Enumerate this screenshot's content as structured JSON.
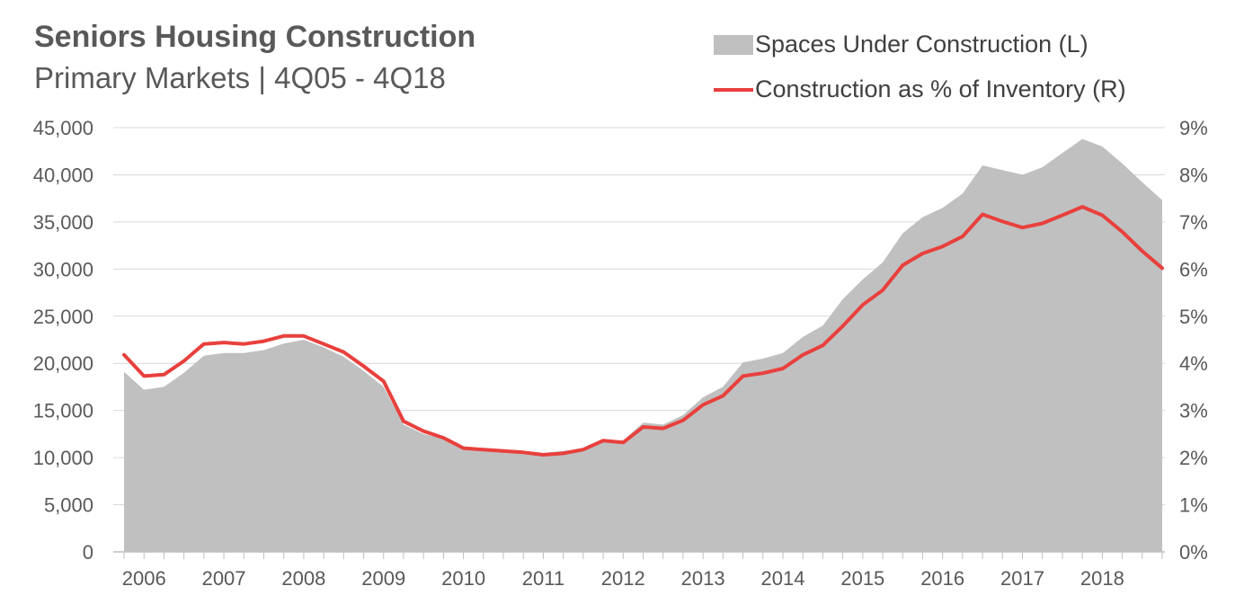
{
  "title": "Seniors Housing Construction",
  "subtitle": "Primary Markets | 4Q05 - 4Q18",
  "colors": {
    "area": "#c0c0c0",
    "line": "#e8403d",
    "grid": "#d9d9d9",
    "text": "#595959"
  },
  "chart_data": {
    "type": "area",
    "title": "Seniors Housing Construction",
    "subtitle": "Primary Markets | 4Q05 - 4Q18",
    "x": [
      "4Q05",
      "1Q06",
      "2Q06",
      "3Q06",
      "4Q06",
      "1Q07",
      "2Q07",
      "3Q07",
      "4Q07",
      "1Q08",
      "2Q08",
      "3Q08",
      "4Q08",
      "1Q09",
      "2Q09",
      "3Q09",
      "4Q09",
      "1Q10",
      "2Q10",
      "3Q10",
      "4Q10",
      "1Q11",
      "2Q11",
      "3Q11",
      "4Q11",
      "1Q12",
      "2Q12",
      "3Q12",
      "4Q12",
      "1Q13",
      "2Q13",
      "3Q13",
      "4Q13",
      "1Q14",
      "2Q14",
      "3Q14",
      "4Q14",
      "1Q15",
      "2Q15",
      "3Q15",
      "4Q15",
      "1Q16",
      "2Q16",
      "3Q16",
      "4Q16",
      "1Q17",
      "2Q17",
      "3Q17",
      "4Q17",
      "1Q18",
      "2Q18",
      "3Q18",
      "4Q18"
    ],
    "x_tick_labels": [
      "2006",
      "2007",
      "2008",
      "2009",
      "2010",
      "2011",
      "2012",
      "2013",
      "2014",
      "2015",
      "2016",
      "2017",
      "2018"
    ],
    "series": [
      {
        "name": "Spaces Under Construction (L)",
        "axis": "left",
        "type": "area",
        "values": [
          19100,
          17200,
          17500,
          19000,
          20800,
          21100,
          21100,
          21400,
          22100,
          22500,
          21700,
          20700,
          19200,
          17500,
          13500,
          12500,
          12000,
          11200,
          11000,
          10900,
          10700,
          10500,
          10700,
          11000,
          11900,
          11800,
          13700,
          13500,
          14500,
          16400,
          17500,
          20100,
          20500,
          21100,
          22800,
          24000,
          26800,
          28900,
          30700,
          33800,
          35500,
          36500,
          38000,
          41000,
          40500,
          40000,
          40800,
          42300,
          43800,
          43000,
          41200,
          39200,
          37300
        ]
      },
      {
        "name": "Construction as % of Inventory (R)",
        "axis": "right",
        "type": "line",
        "values": [
          4.18,
          3.73,
          3.76,
          4.05,
          4.41,
          4.44,
          4.41,
          4.47,
          4.58,
          4.58,
          4.41,
          4.24,
          3.94,
          3.62,
          2.77,
          2.56,
          2.42,
          2.2,
          2.17,
          2.14,
          2.11,
          2.06,
          2.09,
          2.17,
          2.36,
          2.32,
          2.65,
          2.62,
          2.79,
          3.12,
          3.31,
          3.73,
          3.79,
          3.89,
          4.18,
          4.38,
          4.79,
          5.24,
          5.55,
          6.08,
          6.33,
          6.48,
          6.69,
          7.16,
          7.01,
          6.88,
          6.97,
          7.14,
          7.32,
          7.14,
          6.79,
          6.38,
          6.02
        ]
      }
    ],
    "ylim_left": [
      0,
      45000
    ],
    "yticks_left": [
      "0",
      "5,000",
      "10,000",
      "15,000",
      "20,000",
      "25,000",
      "30,000",
      "35,000",
      "40,000",
      "45,000"
    ],
    "ylim_right": [
      0,
      9
    ],
    "yticks_right": [
      "0%",
      "1%",
      "2%",
      "3%",
      "4%",
      "5%",
      "6%",
      "7%",
      "8%",
      "9%"
    ],
    "grid": true,
    "legend": "top-right"
  }
}
